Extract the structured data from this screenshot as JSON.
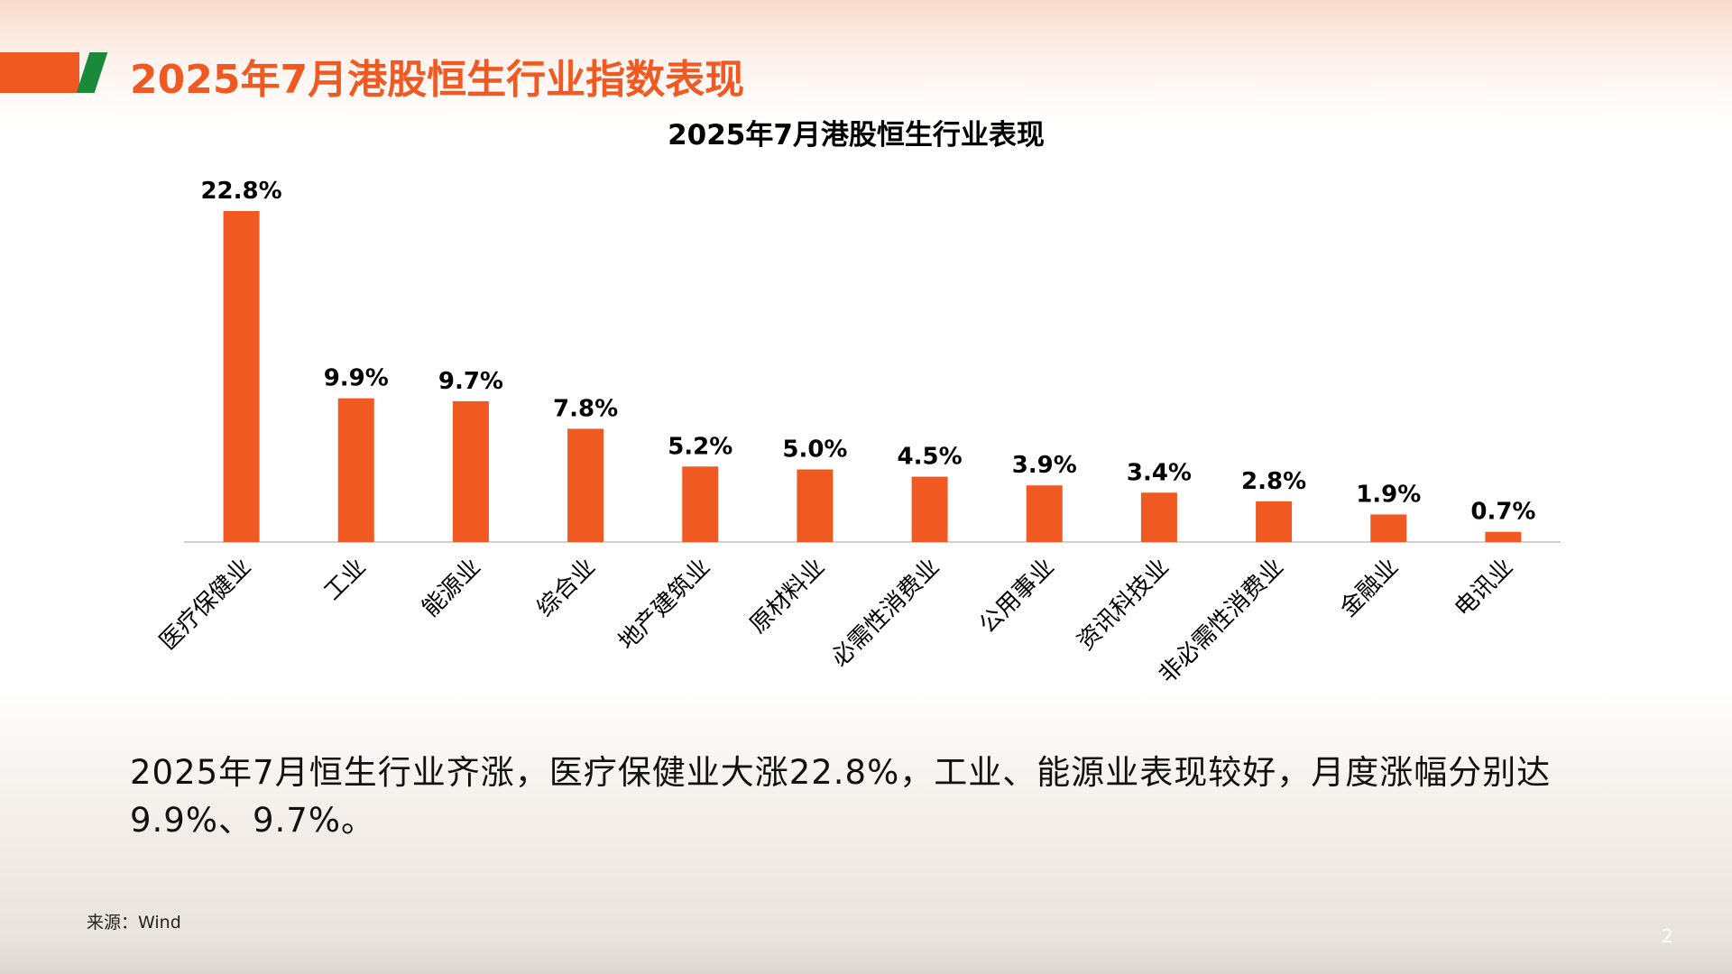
{
  "slide": {
    "title": "2025年7月港股恒生行业指数表现",
    "note": "2025年7月恒生行业齐涨，医疗保健业大涨22.8%，工业、能源业表现较好，月度涨幅分别达9.9%、9.7%。",
    "source": "来源：Wind",
    "page": "2"
  },
  "chart_data": {
    "type": "bar",
    "title": "2025年7月港股恒生行业表现",
    "categories": [
      "医疗保健业",
      "工业",
      "能源业",
      "综合业",
      "地产建筑业",
      "原材料业",
      "必需性消费业",
      "公用事业",
      "资讯科技业",
      "非必需性消费业",
      "金融业",
      "电讯业"
    ],
    "values": [
      22.8,
      9.9,
      9.7,
      7.8,
      5.2,
      5.0,
      4.5,
      3.9,
      3.4,
      2.8,
      1.9,
      0.7
    ],
    "value_labels": [
      "22.8%",
      "9.9%",
      "9.7%",
      "7.8%",
      "5.2%",
      "5.0%",
      "4.5%",
      "3.9%",
      "3.4%",
      "2.8%",
      "1.9%",
      "0.7%"
    ],
    "color": "#f05a22",
    "grid": false
  }
}
